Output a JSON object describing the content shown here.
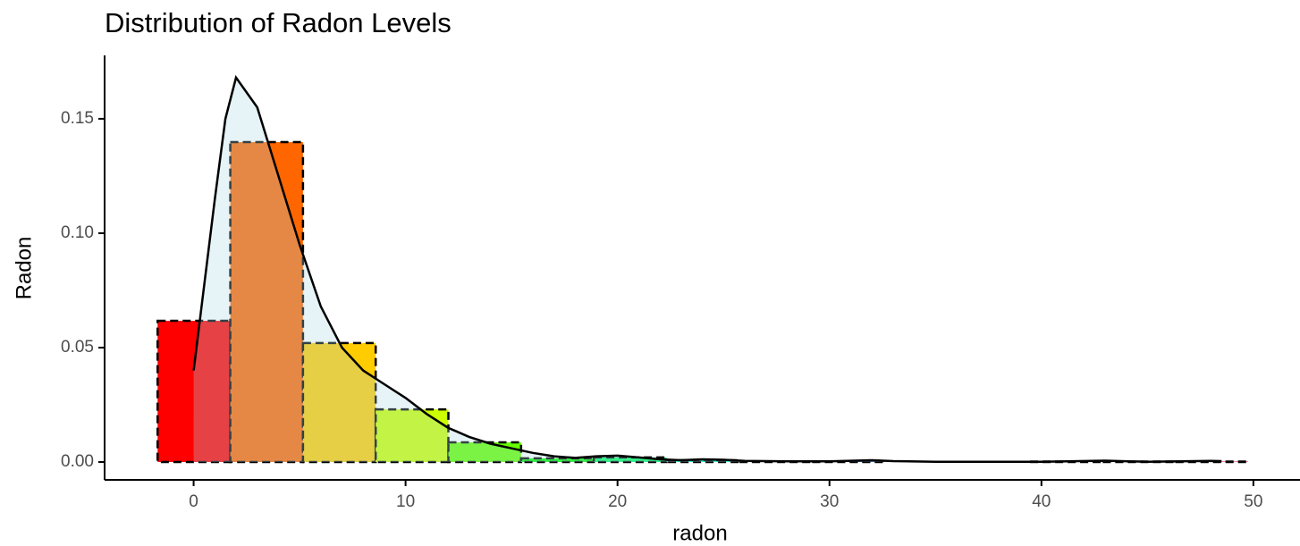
{
  "chart_data": {
    "type": "histogram",
    "title": "Distribution of Radon Levels",
    "xlabel": "radon",
    "ylabel": "Radon",
    "bins": [
      -1.7,
      1.73,
      5.16,
      8.59,
      12.02,
      15.45,
      18.88,
      22.31,
      25.74,
      29.17,
      32.6,
      36.03,
      39.46,
      42.89,
      46.32,
      49.75
    ],
    "values": [
      0.0617,
      0.1398,
      0.052,
      0.023,
      0.0086,
      0.0016,
      0.002,
      0.0008,
      0.0003,
      0.0003,
      0,
      0,
      0.0002,
      0.0002,
      0.0002
    ],
    "colors": [
      "#FF0000",
      "#FF6600",
      "#FFCC00",
      "#CCFF00",
      "#66FF00",
      "#00FF00",
      "#00FF66",
      "#00FFCC",
      "#00CCFF",
      "#0066FF",
      "#0000FF",
      "#6600FF",
      "#CC00FF",
      "#FF00CC",
      "#FF0066"
    ],
    "density": {
      "color": "#add8e6",
      "x": [
        0,
        1,
        1.5,
        2,
        3,
        4,
        5,
        6,
        7,
        8,
        9,
        10,
        11,
        12,
        13,
        14,
        15,
        16,
        17,
        18,
        19,
        20,
        21,
        22,
        23,
        24,
        25,
        26,
        28,
        30,
        32,
        33,
        35,
        40,
        43,
        45,
        48,
        48.5
      ],
      "y": [
        0.04,
        0.115,
        0.15,
        0.168,
        0.155,
        0.125,
        0.095,
        0.068,
        0.05,
        0.04,
        0.034,
        0.028,
        0.021,
        0.015,
        0.011,
        0.008,
        0.006,
        0.004,
        0.0025,
        0.0018,
        0.0025,
        0.0028,
        0.002,
        0.0012,
        0.0008,
        0.0012,
        0.001,
        0.0005,
        0.0003,
        0.0003,
        0.0008,
        0.0004,
        0.0001,
        0.0001,
        0.0006,
        0.0001,
        0.0005,
        0.0004
      ]
    },
    "xlim": [
      -4.2,
      52.2
    ],
    "ylim": [
      -0.0078,
      0.1777
    ],
    "xticks": [
      0,
      10,
      20,
      30,
      40,
      50
    ],
    "yticks": [
      {
        "value": 0,
        "label": "0.00"
      },
      {
        "value": 0.05,
        "label": "0.05"
      },
      {
        "value": 0.1,
        "label": "0.10"
      },
      {
        "value": 0.15,
        "label": "0.15"
      }
    ]
  }
}
